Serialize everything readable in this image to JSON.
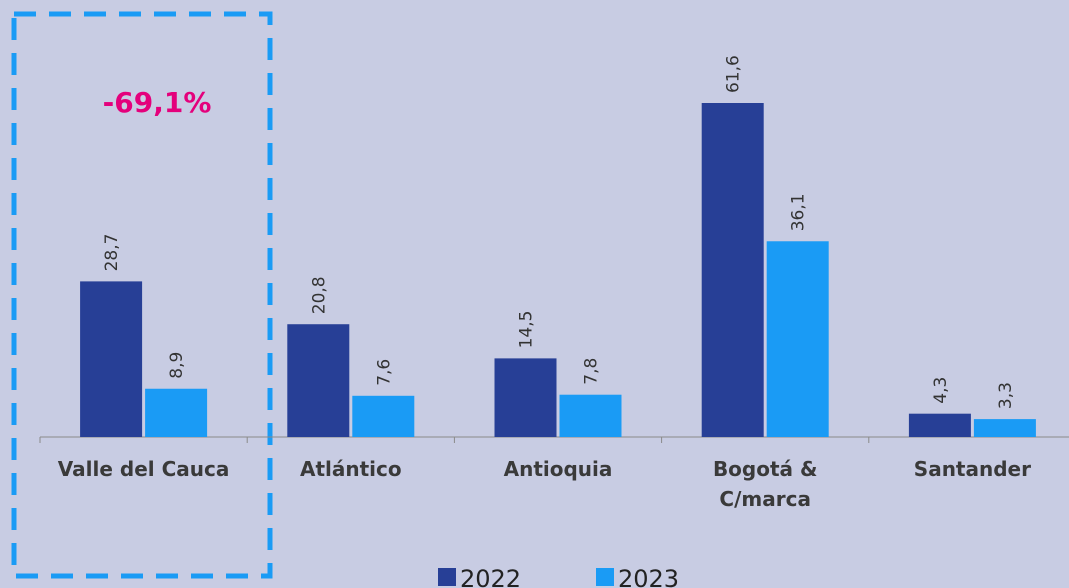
{
  "chart_data": {
    "type": "bar",
    "categories": [
      "Valle del Cauca",
      "Atlántico",
      "Antioquia",
      "Bogotá & C/marca",
      "Santander"
    ],
    "category_lines": [
      [
        "Valle del Cauca"
      ],
      [
        "Atlántico"
      ],
      [
        "Antioquia"
      ],
      [
        "Bogotá &",
        "C/marca"
      ],
      [
        "Santander"
      ]
    ],
    "series": [
      {
        "name": "2022",
        "values": [
          28.7,
          20.8,
          14.5,
          61.6,
          4.3
        ],
        "labels": [
          "28,7",
          "20,8",
          "14,5",
          "61,6",
          "4,3"
        ],
        "color": "#273f96"
      },
      {
        "name": "2023",
        "values": [
          8.9,
          7.6,
          7.8,
          36.1,
          3.3
        ],
        "labels": [
          "8,9",
          "7,6",
          "7,8",
          "36,1",
          "3,3"
        ],
        "color": "#1a9bf5"
      }
    ],
    "ylim": [
      0,
      62
    ],
    "grid": false,
    "legend_position": "bottom",
    "annotation": {
      "text": "-69,1%",
      "category": "Valle del Cauca",
      "color": "#e4007c"
    },
    "highlight_color": "#1a9bf5"
  }
}
